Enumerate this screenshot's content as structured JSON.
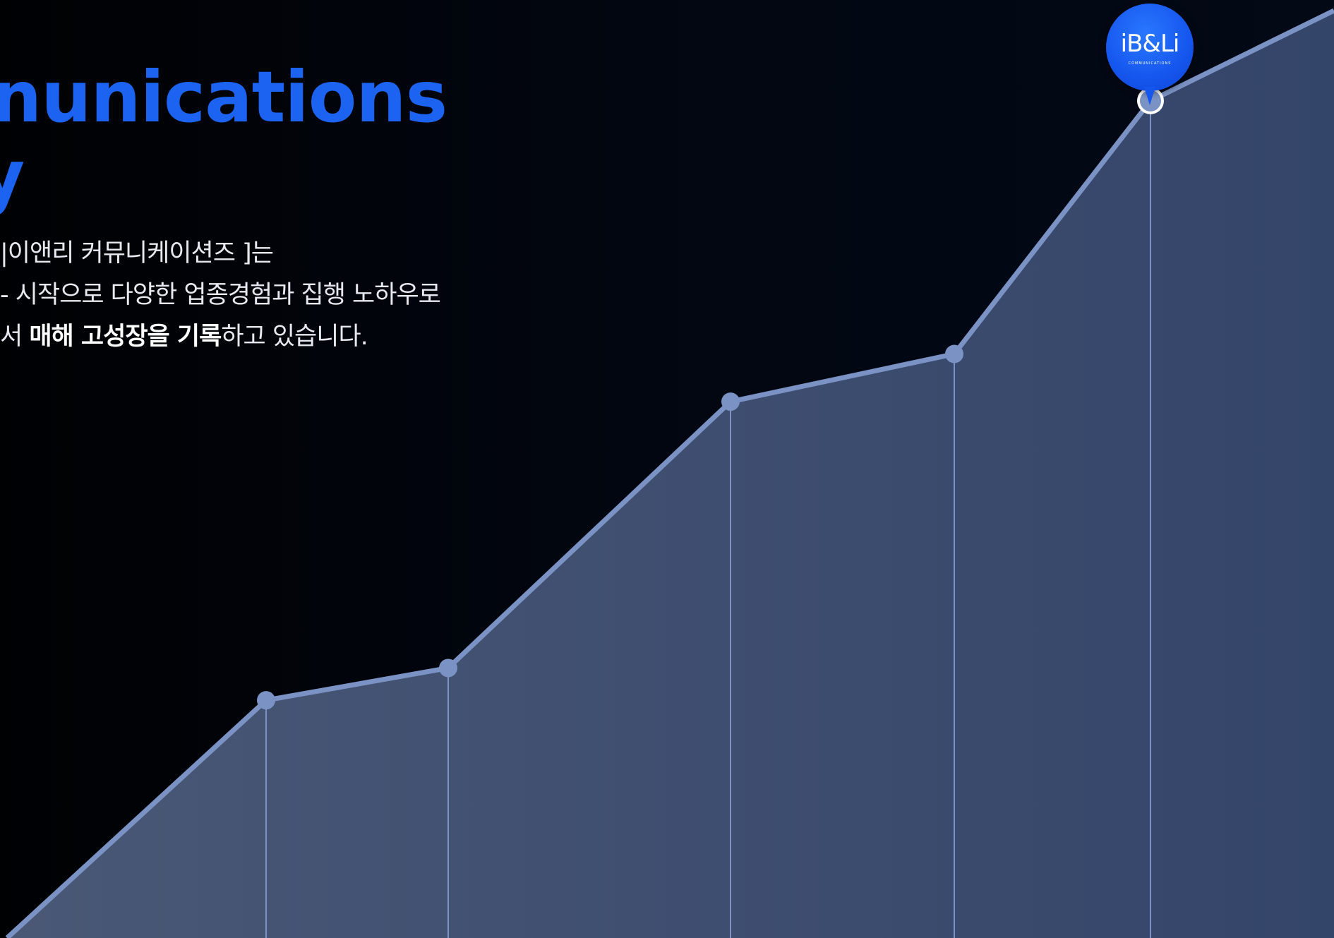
{
  "headline": {
    "line1": "nunications",
    "line2": "y"
  },
  "body": {
    "line1": "|이앤리 커뮤니케이션즈 ]는",
    "line2": "- 시작으로 다양한 업종경험과 집행 노하우로",
    "line3_prefix": "서 ",
    "line3_bold": "매해 고성장을 기록",
    "line3_suffix": "하고 있습니다."
  },
  "marker": {
    "logo_text": "iB&Li",
    "logo_sub": "COMMUNICATIONS"
  },
  "colors": {
    "background": "#02050c",
    "accent": "#1b63f0",
    "line": "#7b93c4",
    "area": "#3f4e6e"
  },
  "chart_data": {
    "type": "area",
    "x": [
      1,
      2,
      3,
      4,
      5,
      6,
      7
    ],
    "values": [
      0,
      324,
      368,
      731,
      796,
      1141,
      1264
    ],
    "highlight_index": 5,
    "xlabel": "",
    "ylabel": "",
    "grid": false,
    "legend": "none"
  }
}
